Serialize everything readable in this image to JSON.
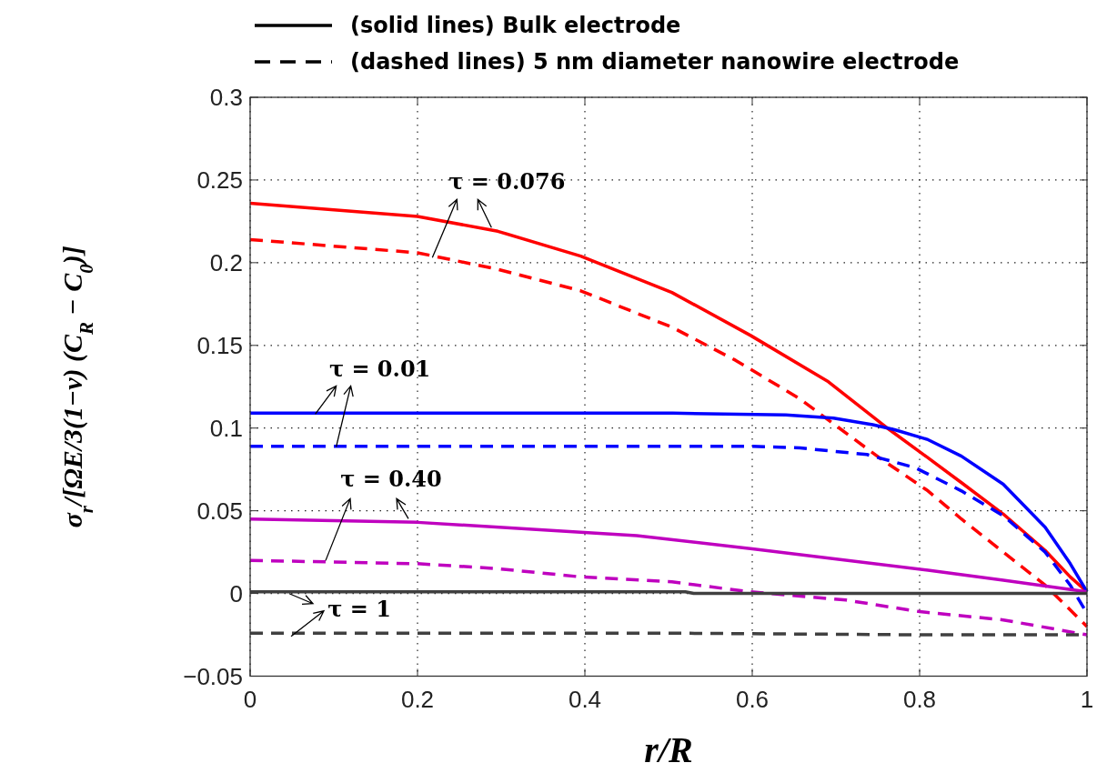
{
  "chart_data": {
    "type": "line",
    "xlabel": "r/R",
    "ylabel": "σ$_{r}$/[ΩE/3(1−ν) (C$_{R}$ − C$_{0}$)]",
    "xlim": [
      0,
      1
    ],
    "ylim": [
      -0.05,
      0.3
    ],
    "xticks": [
      0,
      0.2,
      0.4,
      0.6,
      0.8,
      1
    ],
    "yticks": [
      -0.05,
      0,
      0.05,
      0.1,
      0.15,
      0.2,
      0.25,
      0.3
    ],
    "grid": true,
    "series": [
      {
        "color": "#ff0000",
        "line_style": "solid",
        "x": [
          0,
          0.2,
          0.296,
          0.395,
          0.504,
          0.598,
          0.691,
          0.764,
          0.81,
          0.85,
          0.9,
          0.95,
          0.98,
          1
        ],
        "values": [
          0.236,
          0.228,
          0.219,
          0.204,
          0.182,
          0.156,
          0.128,
          0.099,
          0.082,
          0.067,
          0.048,
          0.026,
          0.01,
          0.001
        ]
      },
      {
        "color": "#ff0000",
        "line_style": "dashed",
        "x": [
          0,
          0.2,
          0.296,
          0.395,
          0.504,
          0.58,
          0.656,
          0.752,
          0.81,
          0.85,
          0.9,
          0.95,
          1
        ],
        "values": [
          0.214,
          0.206,
          0.196,
          0.183,
          0.161,
          0.141,
          0.118,
          0.082,
          0.062,
          0.045,
          0.025,
          0.005,
          -0.02
        ]
      },
      {
        "color": "#0000ff",
        "line_style": "solid",
        "x": [
          0,
          0.505,
          0.64,
          0.697,
          0.744,
          0.77,
          0.81,
          0.85,
          0.9,
          0.95,
          0.98,
          1
        ],
        "values": [
          0.109,
          0.109,
          0.108,
          0.106,
          0.102,
          0.099,
          0.093,
          0.083,
          0.066,
          0.04,
          0.018,
          0.001
        ]
      },
      {
        "color": "#0000ff",
        "line_style": "dashed",
        "x": [
          0,
          0.6,
          0.657,
          0.697,
          0.737,
          0.795,
          0.85,
          0.9,
          0.95,
          0.98,
          1
        ],
        "values": [
          0.089,
          0.089,
          0.088,
          0.086,
          0.084,
          0.076,
          0.062,
          0.047,
          0.025,
          0.005,
          -0.012
        ]
      },
      {
        "color": "#bf00bf",
        "line_style": "solid",
        "x": [
          0,
          0.2,
          0.395,
          0.462,
          0.6,
          0.81,
          0.9,
          1
        ],
        "values": [
          0.045,
          0.043,
          0.037,
          0.035,
          0.027,
          0.014,
          0.008,
          0.001
        ]
      },
      {
        "color": "#bf00bf",
        "line_style": "dashed",
        "x": [
          0,
          0.2,
          0.296,
          0.395,
          0.504,
          0.597,
          0.712,
          0.8,
          0.9,
          1
        ],
        "values": [
          0.02,
          0.018,
          0.015,
          0.01,
          0.007,
          0.001,
          -0.004,
          -0.011,
          -0.016,
          -0.025
        ]
      },
      {
        "color": "#404040",
        "line_style": "solid",
        "x": [
          0,
          0.52,
          0.53,
          1
        ],
        "values": [
          0.001,
          0.001,
          0,
          0
        ]
      },
      {
        "color": "#404040",
        "line_style": "dashed",
        "x": [
          0,
          0.5,
          0.8,
          1
        ],
        "values": [
          -0.024,
          -0.024,
          -0.025,
          -0.025
        ]
      }
    ],
    "annotations": [
      "(solid lines) Bulk electrode",
      "(dashed lines) 5 nm diameter nanowire electrode",
      {
        "text": "τ = 0.076",
        "x": 0.296,
        "y": 0.219
      },
      {
        "text": "τ = 0.01",
        "x": 0.08,
        "y": 0.109
      },
      {
        "text": "τ = 0.40",
        "x": 0.2,
        "y": 0.043
      },
      {
        "text": "τ = 1",
        "x": 0.05,
        "y": 0.001
      }
    ]
  }
}
